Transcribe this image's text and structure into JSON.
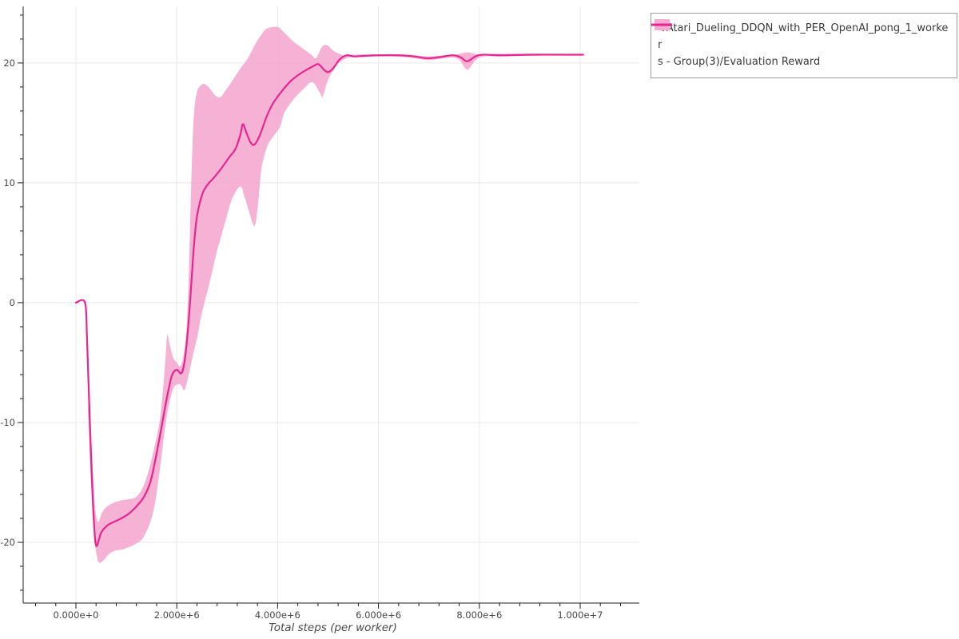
{
  "legend": {
    "marker": "◀",
    "series_label_line1": "Atari_Dueling_DDQN_with_PER_OpenAI_pong_1_worker",
    "series_label_line2": "s - Group(3)/Evaluation Reward"
  },
  "axes": {
    "x_title": "Total steps (per worker)",
    "x_ticks": [
      {
        "value": 0,
        "label": "0.000e+0"
      },
      {
        "value": 2000000,
        "label": "2.000e+6"
      },
      {
        "value": 4000000,
        "label": "4.000e+6"
      },
      {
        "value": 6000000,
        "label": "6.000e+6"
      },
      {
        "value": 8000000,
        "label": "8.000e+6"
      },
      {
        "value": 10000000,
        "label": "1.000e+7"
      }
    ],
    "y_ticks": [
      {
        "value": -20,
        "label": "-20"
      },
      {
        "value": -10,
        "label": "-10"
      },
      {
        "value": 0,
        "label": "0"
      },
      {
        "value": 10,
        "label": "10"
      },
      {
        "value": 20,
        "label": "20"
      }
    ],
    "x_minor_step": 400000,
    "y_minor_step": 2
  },
  "colors": {
    "line": "#e6268f",
    "band": "#f3a1cb",
    "grid": "#e8e8e8",
    "axis": "#1f1f1f",
    "tick_label": "#474747",
    "legend_border": "#9c9c9c",
    "legend_text": "#3a3a3a"
  },
  "chart_data": {
    "type": "line",
    "title": "",
    "xlabel": "Total steps (per worker)",
    "ylabel": "",
    "grid": true,
    "legend_position": "top-right",
    "x_axis_range": [
      -1046000,
      11173000
    ],
    "y_axis_range": [
      -25.07,
      24.73
    ],
    "series": [
      {
        "name": "Atari_Dueling_DDQN_with_PER_OpenAI_pong_1_workers - Group(3)/Evaluation Reward",
        "color": "#e6268f",
        "band_color": "#f3a1cb",
        "points": [
          [
            0,
            0
          ],
          [
            180000,
            0
          ],
          [
            220000,
            -3
          ],
          [
            260000,
            -8
          ],
          [
            310000,
            -14
          ],
          [
            360000,
            -18.5
          ],
          [
            405000,
            -20.3
          ],
          [
            500000,
            -19.2
          ],
          [
            620000,
            -18.6
          ],
          [
            750000,
            -18.3
          ],
          [
            900000,
            -18
          ],
          [
            1050000,
            -17.6
          ],
          [
            1200000,
            -17
          ],
          [
            1350000,
            -16.2
          ],
          [
            1480000,
            -14.9
          ],
          [
            1580000,
            -13
          ],
          [
            1680000,
            -10.8
          ],
          [
            1760000,
            -8.9
          ],
          [
            1840000,
            -7.2
          ],
          [
            1910000,
            -6
          ],
          [
            2000000,
            -5.6
          ],
          [
            2090000,
            -5.9
          ],
          [
            2150000,
            -5
          ],
          [
            2210000,
            -2.8
          ],
          [
            2270000,
            0.4
          ],
          [
            2330000,
            4.2
          ],
          [
            2390000,
            6.9
          ],
          [
            2460000,
            8.4
          ],
          [
            2530000,
            9.3
          ],
          [
            2620000,
            9.9
          ],
          [
            2750000,
            10.5
          ],
          [
            2900000,
            11.3
          ],
          [
            3050000,
            12.2
          ],
          [
            3160000,
            12.8
          ],
          [
            3260000,
            14
          ],
          [
            3310000,
            14.9
          ],
          [
            3380000,
            14.2
          ],
          [
            3460000,
            13.4
          ],
          [
            3540000,
            13.2
          ],
          [
            3650000,
            14
          ],
          [
            3770000,
            15.4
          ],
          [
            3890000,
            16.5
          ],
          [
            4000000,
            17.2
          ],
          [
            4130000,
            17.9
          ],
          [
            4260000,
            18.5
          ],
          [
            4410000,
            19
          ],
          [
            4560000,
            19.4
          ],
          [
            4710000,
            19.75
          ],
          [
            4810000,
            19.9
          ],
          [
            4930000,
            19.4
          ],
          [
            5010000,
            19.25
          ],
          [
            5110000,
            19.6
          ],
          [
            5230000,
            20.3
          ],
          [
            5370000,
            20.65
          ],
          [
            5520000,
            20.55
          ],
          [
            5720000,
            20.6
          ],
          [
            6000000,
            20.65
          ],
          [
            6400000,
            20.65
          ],
          [
            6720000,
            20.55
          ],
          [
            6970000,
            20.4
          ],
          [
            7220000,
            20.5
          ],
          [
            7470000,
            20.65
          ],
          [
            7620000,
            20.5
          ],
          [
            7760000,
            20.15
          ],
          [
            7920000,
            20.55
          ],
          [
            8070000,
            20.7
          ],
          [
            8450000,
            20.65
          ],
          [
            9000000,
            20.7
          ],
          [
            9600000,
            20.7
          ],
          [
            10060000,
            20.7
          ]
        ],
        "band_upper": [
          [
            260000,
            -6
          ],
          [
            320000,
            -12.5
          ],
          [
            380000,
            -17
          ],
          [
            440000,
            -18.3
          ],
          [
            520000,
            -17.5
          ],
          [
            620000,
            -17
          ],
          [
            750000,
            -16.7
          ],
          [
            900000,
            -16.5
          ],
          [
            1050000,
            -16.4
          ],
          [
            1200000,
            -16.2
          ],
          [
            1330000,
            -15.4
          ],
          [
            1450000,
            -13.9
          ],
          [
            1550000,
            -12.2
          ],
          [
            1650000,
            -10.2
          ],
          [
            1720000,
            -7.6
          ],
          [
            1780000,
            -4.4
          ],
          [
            1810000,
            -2.7
          ],
          [
            1860000,
            -3.5
          ],
          [
            1930000,
            -4.6
          ],
          [
            2000000,
            -5
          ],
          [
            2070000,
            -5.3
          ],
          [
            2130000,
            -4.5
          ],
          [
            2190000,
            -2.4
          ],
          [
            2240000,
            2.5
          ],
          [
            2280000,
            9
          ],
          [
            2330000,
            15
          ],
          [
            2390000,
            17.4
          ],
          [
            2470000,
            18.1
          ],
          [
            2550000,
            18.25
          ],
          [
            2650000,
            17.9
          ],
          [
            2760000,
            17.3
          ],
          [
            2860000,
            17.15
          ],
          [
            2950000,
            17.6
          ],
          [
            3050000,
            18.2
          ],
          [
            3160000,
            18.9
          ],
          [
            3270000,
            19.6
          ],
          [
            3410000,
            20.4
          ],
          [
            3560000,
            21.6
          ],
          [
            3700000,
            22.5
          ],
          [
            3800000,
            22.9
          ],
          [
            4000000,
            23
          ],
          [
            4130000,
            22.55
          ],
          [
            4310000,
            21.8
          ],
          [
            4520000,
            21.15
          ],
          [
            4680000,
            20.65
          ],
          [
            4760000,
            20.4
          ],
          [
            4880000,
            21.35
          ],
          [
            4980000,
            21.5
          ],
          [
            5100000,
            21.05
          ],
          [
            5210000,
            20.8
          ],
          [
            5350000,
            20.6
          ],
          [
            5500000,
            20.7
          ],
          [
            5720000,
            20.72
          ],
          [
            6000000,
            20.72
          ],
          [
            6500000,
            20.72
          ],
          [
            6970000,
            20.55
          ],
          [
            7300000,
            20.65
          ],
          [
            7550000,
            20.72
          ],
          [
            7760000,
            20.9
          ],
          [
            7950000,
            20.75
          ],
          [
            8200000,
            20.75
          ],
          [
            9000000,
            20.78
          ],
          [
            10060000,
            20.75
          ]
        ],
        "band_lower": [
          [
            240000,
            -9
          ],
          [
            300000,
            -15
          ],
          [
            360000,
            -19.5
          ],
          [
            420000,
            -21.2
          ],
          [
            460000,
            -21.7
          ],
          [
            550000,
            -21.5
          ],
          [
            650000,
            -21
          ],
          [
            780000,
            -20.7
          ],
          [
            920000,
            -20.6
          ],
          [
            1050000,
            -20.4
          ],
          [
            1200000,
            -20.1
          ],
          [
            1320000,
            -19.7
          ],
          [
            1440000,
            -18.7
          ],
          [
            1530000,
            -17.5
          ],
          [
            1600000,
            -15.9
          ],
          [
            1680000,
            -13.4
          ],
          [
            1760000,
            -10.7
          ],
          [
            1840000,
            -8.6
          ],
          [
            1930000,
            -7.2
          ],
          [
            2020000,
            -6.8
          ],
          [
            2090000,
            -6.9
          ],
          [
            2150000,
            -7.3
          ],
          [
            2220000,
            -6.3
          ],
          [
            2320000,
            -4.4
          ],
          [
            2410000,
            -2.8
          ],
          [
            2480000,
            -1.2
          ],
          [
            2560000,
            0.2
          ],
          [
            2630000,
            1.3
          ],
          [
            2780000,
            4
          ],
          [
            2890000,
            5.7
          ],
          [
            2990000,
            7.2
          ],
          [
            3100000,
            8.7
          ],
          [
            3260000,
            9.7
          ],
          [
            3340000,
            8.9
          ],
          [
            3420000,
            7.8
          ],
          [
            3540000,
            6.4
          ],
          [
            3610000,
            8.2
          ],
          [
            3670000,
            10.9
          ],
          [
            3730000,
            12.2
          ],
          [
            3810000,
            13.2
          ],
          [
            3900000,
            13.8
          ],
          [
            4050000,
            14.7
          ],
          [
            4130000,
            15.8
          ],
          [
            4320000,
            17
          ],
          [
            4530000,
            17.9
          ],
          [
            4690000,
            18.4
          ],
          [
            4840000,
            17.5
          ],
          [
            4890000,
            17.2
          ],
          [
            5000000,
            18.6
          ],
          [
            5110000,
            19.4
          ],
          [
            5210000,
            20
          ],
          [
            5370000,
            20.4
          ],
          [
            5550000,
            20.5
          ],
          [
            5720000,
            20.5
          ],
          [
            6000000,
            20.55
          ],
          [
            6500000,
            20.5
          ],
          [
            6970000,
            20.25
          ],
          [
            7300000,
            20.4
          ],
          [
            7500000,
            20.45
          ],
          [
            7620000,
            20.2
          ],
          [
            7760000,
            19.45
          ],
          [
            7920000,
            20.2
          ],
          [
            8070000,
            20.55
          ],
          [
            8450000,
            20.55
          ],
          [
            9000000,
            20.6
          ],
          [
            10060000,
            20.65
          ]
        ]
      }
    ]
  }
}
